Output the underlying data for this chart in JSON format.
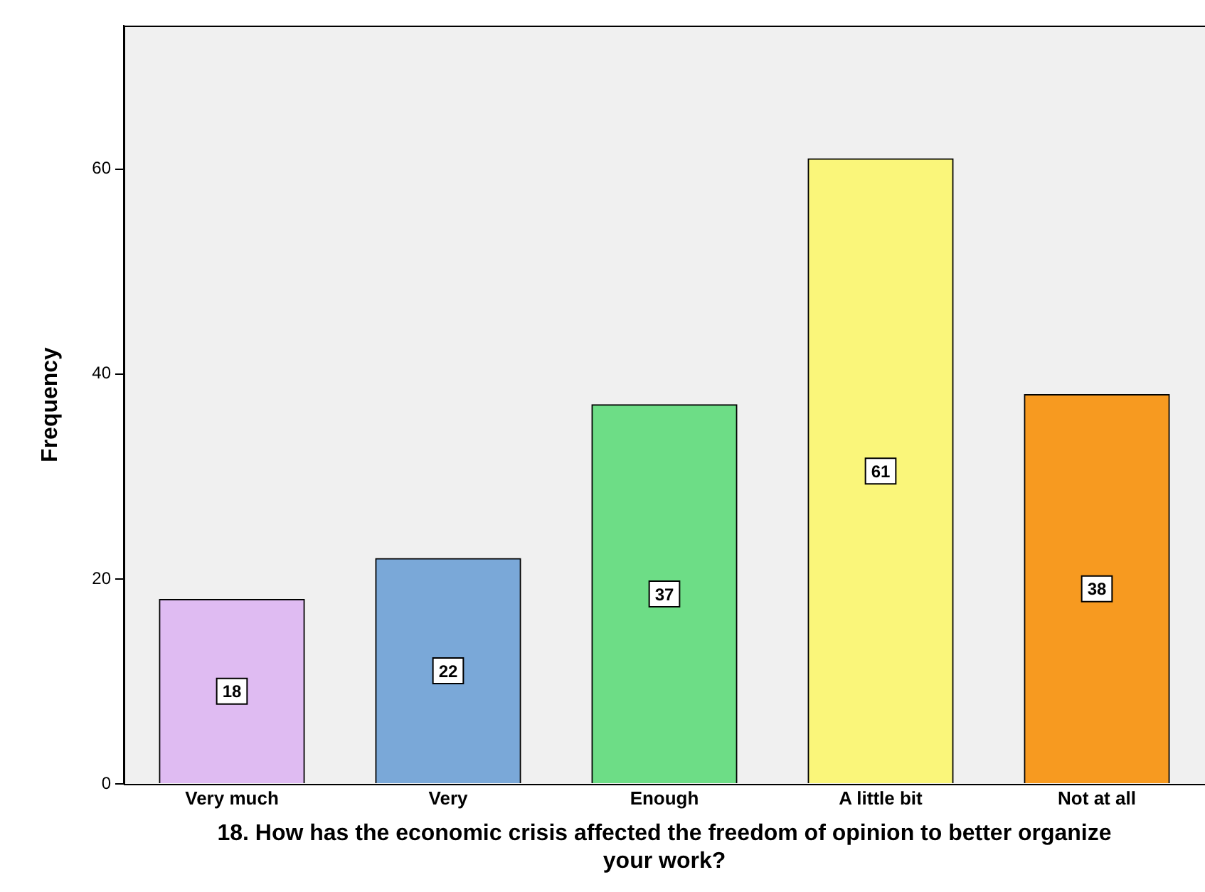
{
  "chart_data": {
    "type": "bar",
    "xlabel": "18. How has the economic crisis affected the freedom of opinion to better organize your work?",
    "ylabel": "Frequency",
    "categories": [
      "Very much",
      "Very",
      "Enough",
      "A little bit",
      "Not at all"
    ],
    "values": [
      18,
      22,
      37,
      61,
      38
    ],
    "colors": [
      "#dfbbf2",
      "#7aa8d8",
      "#6ddd86",
      "#faf67a",
      "#f79a20"
    ],
    "ylim": [
      0,
      74
    ],
    "yticks": [
      0,
      20,
      40,
      60
    ],
    "grid": false,
    "legend": false,
    "data_labels": true
  }
}
